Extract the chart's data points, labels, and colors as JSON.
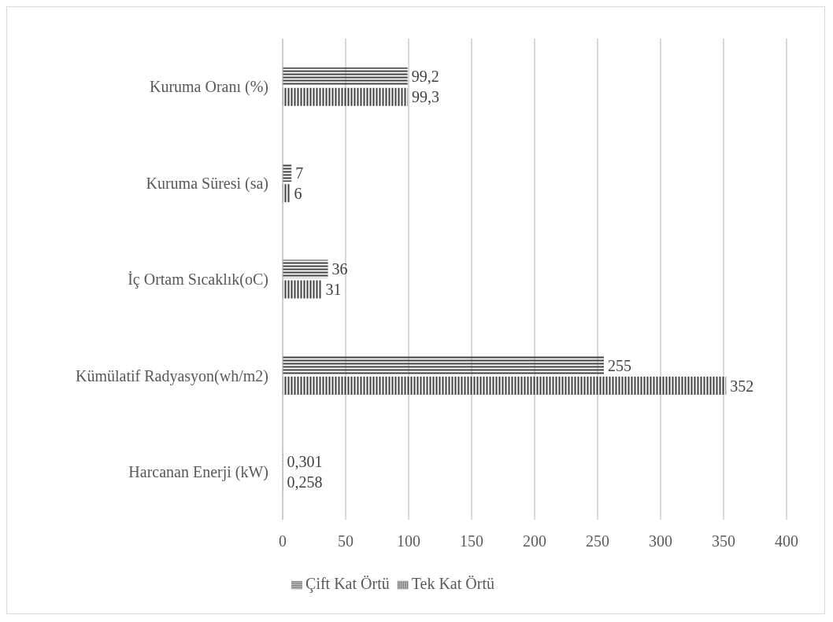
{
  "chart_data": {
    "type": "bar",
    "orientation": "horizontal",
    "categories": [
      "Kuruma Oranı (%)",
      "Kuruma Süresi (sa)",
      "İç Ortam Sıcaklık(oC)",
      "Kümülatif Radyasyon(wh/m2)",
      "Harcanan Enerji (kW)"
    ],
    "series": [
      {
        "name": "Çift Kat Örtü",
        "color": "#404040",
        "values": [
          99.2,
          7,
          36,
          255,
          0.301
        ],
        "value_labels": [
          "99,2",
          "7",
          "36",
          "255",
          "0,301"
        ]
      },
      {
        "name": "Tek Kat Örtü",
        "color": "#404040",
        "values": [
          99.3,
          6,
          31,
          352,
          0.258
        ],
        "value_labels": [
          "99,3",
          "6",
          "31",
          "352",
          "0,258"
        ]
      }
    ],
    "xlim": [
      0,
      400
    ],
    "xticks": [
      0,
      50,
      100,
      150,
      200,
      250,
      300,
      350,
      400
    ],
    "grid": "x",
    "legend": "bottom"
  }
}
